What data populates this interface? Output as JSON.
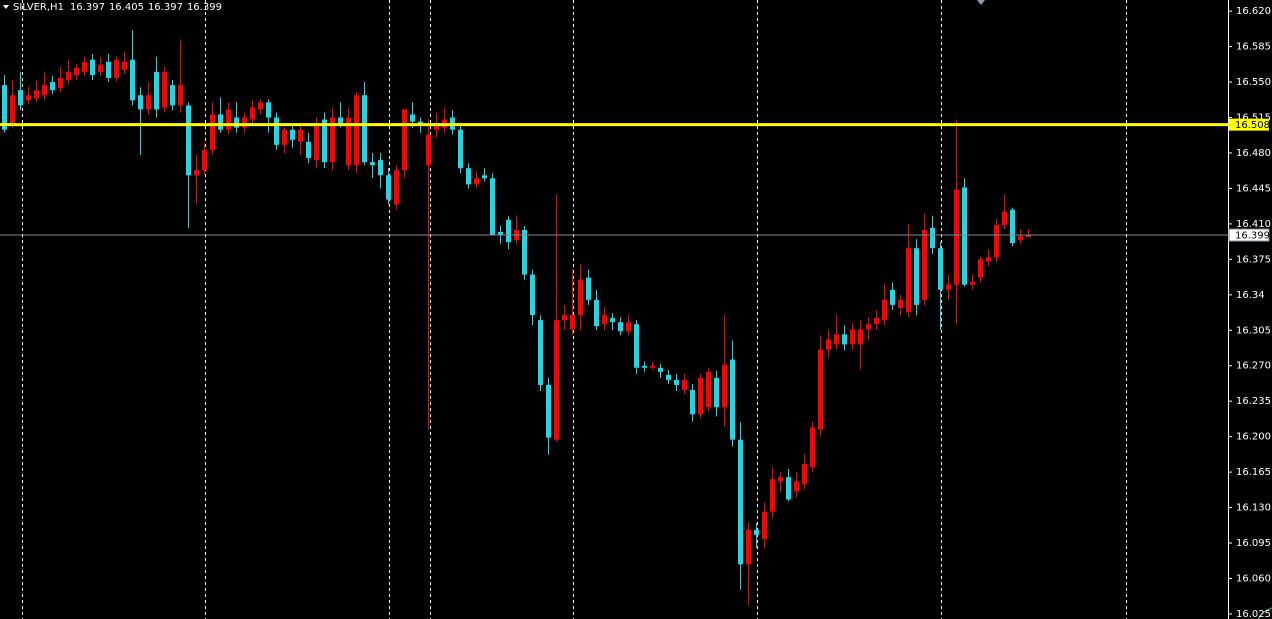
{
  "chart_data": {
    "type": "candlestick",
    "symbol": "SILVER,H1",
    "up_color": "#ff0000",
    "down_color": "#1fd7e6",
    "background": "#000000",
    "ylim": [
      16.02,
      16.631
    ],
    "yticks": [
      {
        "value": 16.62,
        "label": "16.620"
      },
      16.585,
      {
        "value": 16.55,
        "label": "16.550"
      },
      16.515,
      {
        "value": 16.48,
        "label": "16.480"
      },
      16.445,
      {
        "value": 16.41,
        "label": "16.410"
      },
      16.375,
      16.34,
      16.305,
      {
        "value": 16.27,
        "label": "16.270"
      },
      16.235,
      {
        "value": 16.2,
        "label": "16.200"
      },
      16.165,
      {
        "value": 16.13,
        "label": "16.130"
      },
      16.095,
      {
        "value": 16.06,
        "label": "16.060"
      },
      16.025
    ],
    "hlines": [
      {
        "value": 16.508,
        "color": "#ffff00"
      }
    ],
    "bid_line_color": "#7f8c96",
    "ohlc": [
      [
        16.547,
        16.557,
        16.5,
        16.503
      ],
      [
        16.508,
        16.552,
        16.505,
        16.537
      ],
      [
        16.542,
        16.56,
        16.522,
        16.527
      ],
      [
        16.532,
        16.545,
        16.528,
        16.537
      ],
      [
        16.534,
        16.552,
        16.53,
        16.542
      ],
      [
        16.537,
        16.56,
        16.532,
        16.547
      ],
      [
        16.55,
        16.556,
        16.538,
        16.542
      ],
      [
        16.544,
        16.565,
        16.54,
        16.554
      ],
      [
        16.552,
        16.572,
        16.548,
        16.56
      ],
      [
        16.557,
        16.568,
        16.552,
        16.564
      ],
      [
        16.56,
        16.575,
        16.556,
        16.57
      ],
      [
        16.572,
        16.578,
        16.552,
        16.557
      ],
      [
        16.56,
        16.575,
        16.556,
        16.567
      ],
      [
        16.57,
        16.578,
        16.55,
        16.554
      ],
      [
        16.554,
        16.575,
        16.55,
        16.572
      ],
      [
        16.562,
        16.58,
        16.558,
        16.57
      ],
      [
        16.572,
        16.601,
        16.527,
        16.532
      ],
      [
        16.537,
        16.545,
        16.478,
        16.523
      ],
      [
        16.523,
        16.55,
        16.518,
        16.537
      ],
      [
        16.56,
        16.575,
        16.515,
        16.523
      ],
      [
        16.525,
        16.565,
        16.52,
        16.56
      ],
      [
        16.547,
        16.552,
        16.522,
        16.527
      ],
      [
        16.527,
        16.592,
        16.52,
        16.547
      ],
      [
        16.527,
        16.53,
        16.406,
        16.458
      ],
      [
        16.458,
        16.478,
        16.429,
        16.463
      ],
      [
        16.463,
        16.49,
        16.458,
        16.483
      ],
      [
        16.483,
        16.53,
        16.478,
        16.518
      ],
      [
        16.518,
        16.535,
        16.5,
        16.503
      ],
      [
        16.503,
        16.53,
        16.498,
        16.523
      ],
      [
        16.515,
        16.53,
        16.5,
        16.505
      ],
      [
        16.505,
        16.52,
        16.5,
        16.515
      ],
      [
        16.513,
        16.532,
        16.508,
        16.525
      ],
      [
        16.523,
        16.533,
        16.518,
        16.53
      ],
      [
        16.53,
        16.533,
        16.5,
        16.515
      ],
      [
        16.515,
        16.52,
        16.483,
        16.488
      ],
      [
        16.488,
        16.505,
        16.48,
        16.503
      ],
      [
        16.503,
        16.508,
        16.485,
        16.493
      ],
      [
        16.491,
        16.51,
        16.478,
        16.503
      ],
      [
        16.491,
        16.5,
        16.47,
        16.475
      ],
      [
        16.473,
        16.515,
        16.465,
        16.508
      ],
      [
        16.513,
        16.52,
        16.465,
        16.471
      ],
      [
        16.471,
        16.525,
        16.463,
        16.515
      ],
      [
        16.515,
        16.53,
        16.505,
        16.508
      ],
      [
        16.468,
        16.525,
        16.463,
        16.515
      ],
      [
        16.468,
        16.54,
        16.46,
        16.537
      ],
      [
        16.537,
        16.55,
        16.468,
        16.471
      ],
      [
        16.471,
        16.48,
        16.455,
        16.468
      ],
      [
        16.473,
        16.48,
        16.445,
        16.458
      ],
      [
        16.458,
        16.465,
        16.429,
        16.434
      ],
      [
        16.429,
        16.468,
        16.424,
        16.463
      ],
      [
        16.463,
        16.52,
        16.455,
        16.523
      ],
      [
        16.518,
        16.53,
        16.505,
        16.511
      ],
      [
        16.511,
        16.515,
        16.5,
        16.508
      ],
      [
        16.468,
        16.513,
        16.207,
        16.498
      ],
      [
        16.503,
        16.52,
        16.495,
        16.508
      ],
      [
        16.505,
        16.525,
        16.5,
        16.513
      ],
      [
        16.515,
        16.522,
        16.498,
        16.503
      ],
      [
        16.503,
        16.51,
        16.46,
        16.465
      ],
      [
        16.465,
        16.47,
        16.445,
        16.449
      ],
      [
        16.449,
        16.462,
        16.445,
        16.455
      ],
      [
        16.458,
        16.465,
        16.452,
        16.455
      ],
      [
        16.455,
        16.46,
        16.399,
        16.399
      ],
      [
        16.402,
        16.408,
        16.39,
        16.399
      ],
      [
        16.414,
        16.418,
        16.385,
        16.392
      ],
      [
        16.394,
        16.418,
        16.39,
        16.404
      ],
      [
        16.404,
        16.408,
        16.355,
        16.36
      ],
      [
        16.36,
        16.365,
        16.31,
        16.32
      ],
      [
        16.315,
        16.32,
        16.245,
        16.251
      ],
      [
        16.251,
        16.258,
        16.182,
        16.199
      ],
      [
        16.197,
        16.439,
        16.195,
        16.315
      ],
      [
        16.315,
        16.33,
        16.305,
        16.32
      ],
      [
        16.306,
        16.365,
        16.3,
        16.32
      ],
      [
        16.32,
        16.37,
        16.305,
        16.355
      ],
      [
        16.357,
        16.365,
        16.33,
        16.335
      ],
      [
        16.335,
        16.345,
        16.305,
        16.309
      ],
      [
        16.311,
        16.328,
        16.305,
        16.32
      ],
      [
        16.317,
        16.322,
        16.305,
        16.313
      ],
      [
        16.313,
        16.318,
        16.3,
        16.304
      ],
      [
        16.304,
        16.32,
        16.3,
        16.313
      ],
      [
        16.311,
        16.315,
        16.262,
        16.268
      ],
      [
        16.27,
        16.274,
        16.264,
        16.268
      ],
      [
        16.268,
        16.274,
        16.266,
        16.27
      ],
      [
        16.268,
        16.272,
        16.258,
        16.264
      ],
      [
        16.261,
        16.266,
        16.252,
        16.256
      ],
      [
        16.256,
        16.262,
        16.245,
        16.251
      ],
      [
        16.246,
        16.262,
        16.242,
        16.256
      ],
      [
        16.246,
        16.252,
        16.215,
        16.222
      ],
      [
        16.222,
        16.262,
        16.218,
        16.258
      ],
      [
        16.229,
        16.268,
        16.225,
        16.264
      ],
      [
        16.258,
        16.265,
        16.22,
        16.229
      ],
      [
        16.229,
        16.32,
        16.21,
        16.271
      ],
      [
        16.276,
        16.295,
        16.19,
        16.197
      ],
      [
        16.197,
        16.214,
        16.049,
        16.074
      ],
      [
        16.074,
        16.115,
        16.034,
        16.108
      ],
      [
        16.108,
        16.115,
        16.09,
        16.103
      ],
      [
        16.099,
        16.135,
        16.09,
        16.126
      ],
      [
        16.126,
        16.17,
        16.12,
        16.158
      ],
      [
        16.156,
        16.165,
        16.145,
        16.16
      ],
      [
        16.16,
        16.168,
        16.136,
        16.138
      ],
      [
        16.146,
        16.165,
        16.14,
        16.156
      ],
      [
        16.153,
        16.183,
        16.148,
        16.173
      ],
      [
        16.17,
        16.215,
        16.165,
        16.209
      ],
      [
        16.207,
        16.3,
        16.2,
        16.286
      ],
      [
        16.286,
        16.305,
        16.278,
        16.296
      ],
      [
        16.291,
        16.32,
        16.286,
        16.301
      ],
      [
        16.301,
        16.31,
        16.285,
        16.291
      ],
      [
        16.291,
        16.312,
        16.286,
        16.306
      ],
      [
        16.291,
        16.315,
        16.266,
        16.306
      ],
      [
        16.306,
        16.318,
        16.295,
        16.311
      ],
      [
        16.311,
        16.325,
        16.305,
        16.317
      ],
      [
        16.315,
        16.35,
        16.31,
        16.335
      ],
      [
        16.345,
        16.352,
        16.325,
        16.33
      ],
      [
        16.327,
        16.34,
        16.32,
        16.335
      ],
      [
        16.323,
        16.41,
        16.318,
        16.386
      ],
      [
        16.386,
        16.395,
        16.32,
        16.33
      ],
      [
        16.335,
        16.42,
        16.33,
        16.404
      ],
      [
        16.406,
        16.418,
        16.38,
        16.386
      ],
      [
        16.386,
        16.392,
        16.305,
        16.345
      ],
      [
        16.345,
        16.36,
        16.335,
        16.35
      ],
      [
        16.35,
        16.513,
        16.311,
        16.444
      ],
      [
        16.446,
        16.455,
        16.348,
        16.35
      ],
      [
        16.35,
        16.36,
        16.345,
        16.353
      ],
      [
        16.357,
        16.378,
        16.352,
        16.375
      ],
      [
        16.373,
        16.385,
        16.368,
        16.377
      ],
      [
        16.377,
        16.415,
        16.372,
        16.409
      ],
      [
        16.409,
        16.439,
        16.405,
        16.422
      ],
      [
        16.424,
        16.426,
        16.388,
        16.391
      ],
      [
        16.394,
        16.405,
        16.39,
        16.398
      ],
      [
        16.397,
        16.405,
        16.397,
        16.399
      ]
    ]
  }
}
